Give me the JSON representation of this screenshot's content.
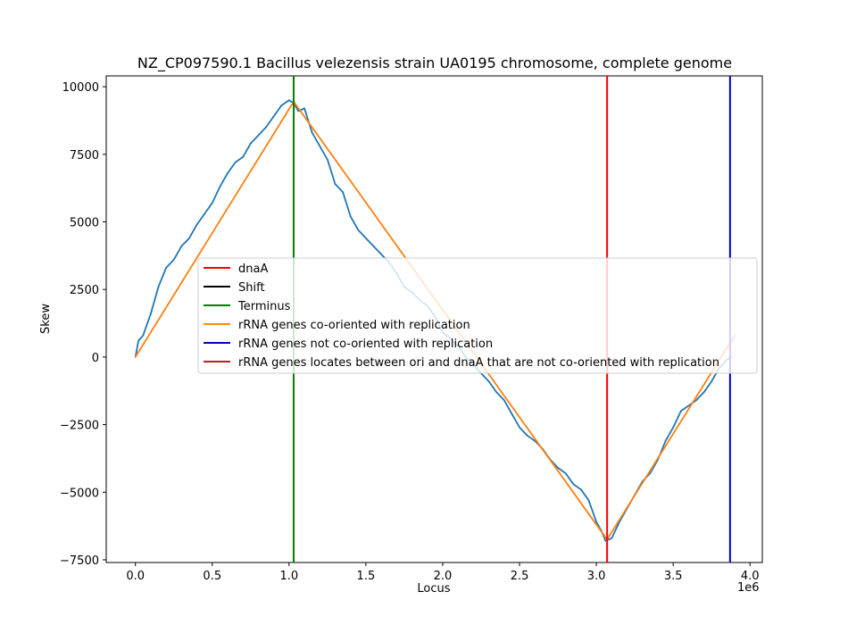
{
  "chart_data": {
    "type": "line",
    "title": "NZ_CP097590.1 Bacillus velezensis strain UA0195 chromosome, complete genome",
    "xlabel": "Locus",
    "ylabel": "Skew",
    "x_offset_label": "1e6",
    "xlim": [
      -0.19,
      4.08
    ],
    "ylim": [
      -7600,
      10400
    ],
    "x_ticks": [
      0.0,
      0.5,
      1.0,
      1.5,
      2.0,
      2.5,
      3.0,
      3.5,
      4.0
    ],
    "x_tick_labels": [
      "0.0",
      "0.5",
      "1.0",
      "1.5",
      "2.0",
      "2.5",
      "3.0",
      "3.5",
      "4.0"
    ],
    "y_ticks": [
      -7500,
      -5000,
      -2500,
      0,
      2500,
      5000,
      7500,
      10000
    ],
    "y_tick_labels": [
      "−7500",
      "−5000",
      "−2500",
      "0",
      "2500",
      "5000",
      "7500",
      "10000"
    ],
    "grid": false,
    "legend_position": "center-right",
    "series": [
      {
        "color": "#1f77b4",
        "x": [
          0.0,
          0.02,
          0.05,
          0.1,
          0.15,
          0.2,
          0.25,
          0.3,
          0.35,
          0.4,
          0.45,
          0.5,
          0.55,
          0.6,
          0.65,
          0.7,
          0.75,
          0.8,
          0.85,
          0.9,
          0.95,
          1.0,
          1.03,
          1.06,
          1.1,
          1.15,
          1.2,
          1.25,
          1.3,
          1.35,
          1.4,
          1.45,
          1.5,
          1.55,
          1.6,
          1.65,
          1.7,
          1.75,
          1.8,
          1.85,
          1.9,
          1.95,
          2.0,
          2.05,
          2.1,
          2.15,
          2.2,
          2.25,
          2.3,
          2.35,
          2.4,
          2.45,
          2.5,
          2.55,
          2.6,
          2.65,
          2.7,
          2.75,
          2.8,
          2.85,
          2.9,
          2.95,
          3.0,
          3.03,
          3.06,
          3.1,
          3.15,
          3.2,
          3.25,
          3.3,
          3.35,
          3.4,
          3.45,
          3.5,
          3.55,
          3.6,
          3.65,
          3.7,
          3.75,
          3.8,
          3.85,
          3.88
        ],
        "values": [
          0,
          600,
          800,
          1600,
          2600,
          3300,
          3600,
          4100,
          4400,
          4900,
          5300,
          5700,
          6300,
          6800,
          7200,
          7400,
          7900,
          8200,
          8500,
          8900,
          9300,
          9500,
          9400,
          9100,
          9200,
          8300,
          7800,
          7300,
          6400,
          6100,
          5200,
          4700,
          4400,
          4100,
          3800,
          3500,
          3100,
          2600,
          2400,
          2100,
          1900,
          1500,
          900,
          700,
          400,
          0,
          -300,
          -600,
          -900,
          -1300,
          -1600,
          -2100,
          -2600,
          -2900,
          -3100,
          -3400,
          -3800,
          -4100,
          -4300,
          -4700,
          -4900,
          -5300,
          -6100,
          -6400,
          -6800,
          -6700,
          -6100,
          -5600,
          -5100,
          -4600,
          -4300,
          -3800,
          -3100,
          -2600,
          -2000,
          -1800,
          -1600,
          -1300,
          -900,
          -400,
          -100,
          0
        ]
      },
      {
        "color": "#ff7f0e",
        "x": [
          0.0,
          1.03,
          3.07,
          3.9
        ],
        "values": [
          0,
          9450,
          -6750,
          800
        ]
      }
    ],
    "vertical_lines": [
      {
        "x": 1.03,
        "color": "#008000"
      },
      {
        "x": 3.07,
        "color": "#ff0000"
      },
      {
        "x": 3.87,
        "color": "#0000cc"
      }
    ],
    "legend": [
      {
        "label": "dnaA",
        "color": "#ff0000"
      },
      {
        "label": "Shift",
        "color": "#000000"
      },
      {
        "label": "Terminus",
        "color": "#008000"
      },
      {
        "label": "rRNA genes co-oriented with replication",
        "color": "#ff8c00"
      },
      {
        "label": "rRNA genes not co-oriented with replication",
        "color": "#0000cc"
      },
      {
        "label": "rRNA genes locates between ori and dnaA that are not co-oriented with replication",
        "color": "#b22222"
      }
    ]
  }
}
